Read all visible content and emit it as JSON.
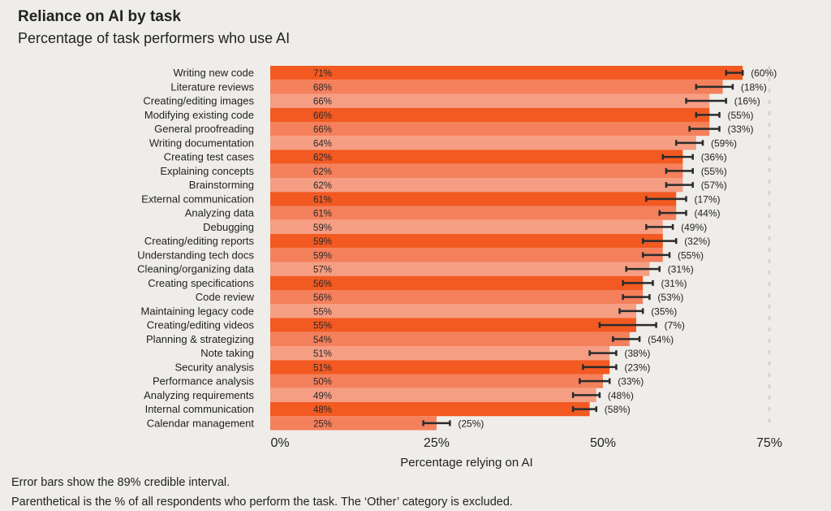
{
  "chart_data": {
    "type": "bar",
    "orientation": "horizontal",
    "title": "Reliance on AI by task",
    "subtitle": "Percentage of task performers who use AI",
    "xlabel": "Percentage relying on AI",
    "ylabel": "",
    "xlim": [
      0,
      75
    ],
    "xticks": [
      0,
      25,
      50,
      75
    ],
    "xtick_labels": [
      "0%",
      "25%",
      "50%",
      "75%"
    ],
    "categories": [
      "Writing new code",
      "Literature reviews",
      "Creating/editing images",
      "Modifying existing code",
      "General proofreading",
      "Writing documentation",
      "Creating test cases",
      "Explaining concepts",
      "Brainstorming",
      "External communication",
      "Analyzing data",
      "Debugging",
      "Creating/editing reports",
      "Understanding tech docs",
      "Cleaning/organizing data",
      "Creating specifications",
      "Code review",
      "Maintaining legacy code",
      "Creating/editing videos",
      "Planning & strategizing",
      "Note taking",
      "Security analysis",
      "Performance analysis",
      "Analyzing requirements",
      "Internal communication",
      "Calendar management"
    ],
    "values": [
      71,
      68,
      66,
      66,
      66,
      64,
      62,
      62,
      62,
      61,
      61,
      59,
      59,
      59,
      57,
      56,
      56,
      55,
      55,
      54,
      51,
      51,
      50,
      49,
      48,
      25
    ],
    "value_labels": [
      "71%",
      "68%",
      "66%",
      "66%",
      "66%",
      "64%",
      "62%",
      "62%",
      "62%",
      "61%",
      "61%",
      "59%",
      "59%",
      "59%",
      "57%",
      "56%",
      "56%",
      "55%",
      "55%",
      "54%",
      "51%",
      "51%",
      "50%",
      "49%",
      "48%",
      "25%"
    ],
    "ci_low": [
      68.5,
      64,
      62.5,
      64,
      63,
      61,
      59,
      59.5,
      59.5,
      56.5,
      58.5,
      56.5,
      56,
      56,
      53.5,
      53,
      53,
      52.5,
      49.5,
      51.5,
      48,
      47,
      46.5,
      45.5,
      45.5,
      23
    ],
    "ci_high": [
      71,
      69.5,
      68.5,
      67.5,
      67.5,
      65,
      63.5,
      63.5,
      63.5,
      62.5,
      62.5,
      60.5,
      61,
      60,
      58.5,
      57.5,
      57,
      56,
      58,
      55.5,
      52,
      52,
      51,
      49.5,
      49,
      27
    ],
    "ci_label": "89% credible interval",
    "performer_share_labels": [
      "(60%)",
      "(18%)",
      "(16%)",
      "(55%)",
      "(33%)",
      "(59%)",
      "(36%)",
      "(55%)",
      "(57%)",
      "(17%)",
      "(44%)",
      "(49%)",
      "(32%)",
      "(55%)",
      "(31%)",
      "(31%)",
      "(53%)",
      "(35%)",
      "(7%)",
      "(54%)",
      "(38%)",
      "(23%)",
      "(33%)",
      "(48%)",
      "(58%)",
      "(25%)"
    ],
    "performer_share": [
      60,
      18,
      16,
      55,
      33,
      59,
      36,
      55,
      57,
      17,
      44,
      49,
      32,
      55,
      31,
      31,
      53,
      35,
      7,
      54,
      38,
      23,
      33,
      48,
      58,
      25
    ]
  },
  "colors": {
    "background": "#efede9",
    "bar_dark": "#f25a22",
    "bar_mid": "#f4805c",
    "bar_light": "#f59e83",
    "error_bar": "#2b2b2b",
    "gridline": "#d2d0cc",
    "text": "#222222"
  },
  "footnotes": {
    "line1": "Error bars show the 89% credible interval.",
    "line2": "Parenthetical is the % of all respondents who perform the task. The ‘Other’ category is excluded."
  }
}
